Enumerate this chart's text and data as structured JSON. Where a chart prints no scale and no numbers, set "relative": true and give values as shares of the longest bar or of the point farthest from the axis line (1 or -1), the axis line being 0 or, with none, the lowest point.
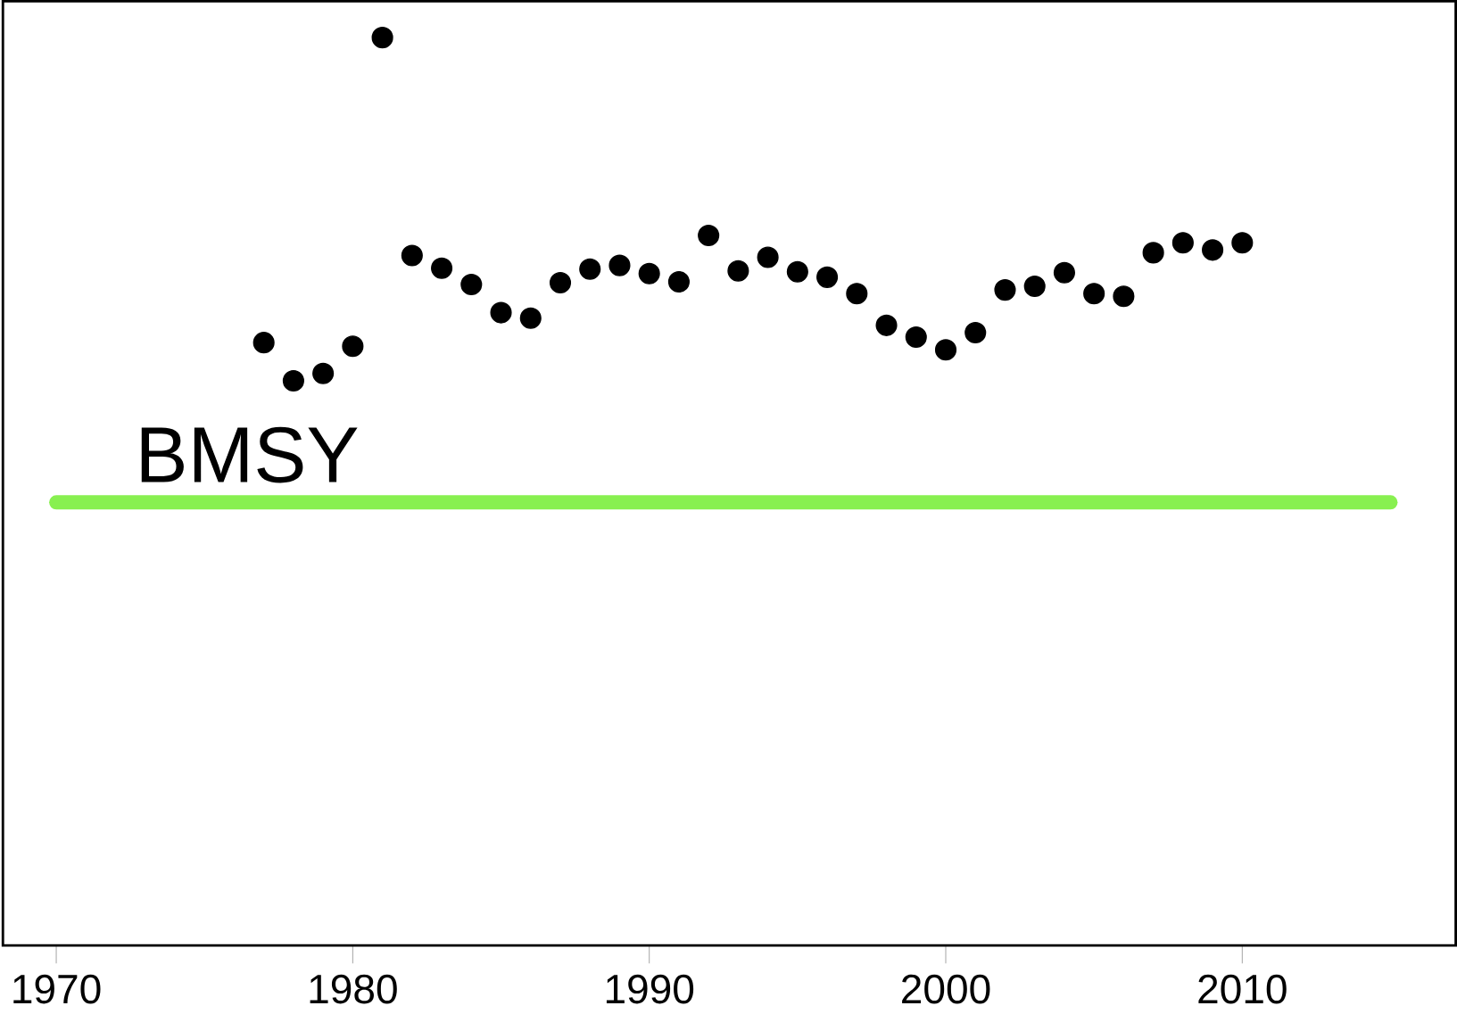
{
  "chart_data": {
    "type": "scatter",
    "relative": true,
    "xlim": [
      1968.2,
      2017.2
    ],
    "xticks": [
      1970,
      1980,
      1990,
      2000,
      2010
    ],
    "series": [
      {
        "marker": "circle",
        "color": "#000000",
        "x": [
          1977,
          1978,
          1979,
          1980,
          1981,
          1982,
          1983,
          1984,
          1985,
          1986,
          1987,
          1988,
          1989,
          1990,
          1991,
          1992,
          1993,
          1994,
          1995,
          1996,
          1997,
          1998,
          1999,
          2000,
          2001,
          2002,
          2003,
          2004,
          2005,
          2006,
          2007,
          2008,
          2009,
          2010
        ],
        "values": [
          0.664,
          0.622,
          0.63,
          0.66,
          1.0,
          0.76,
          0.746,
          0.728,
          0.697,
          0.691,
          0.73,
          0.745,
          0.749,
          0.74,
          0.731,
          0.782,
          0.743,
          0.758,
          0.742,
          0.736,
          0.718,
          0.683,
          0.67,
          0.656,
          0.675,
          0.722,
          0.726,
          0.741,
          0.718,
          0.715,
          0.763,
          0.774,
          0.766,
          0.774
        ]
      },
      {
        "type": "line",
        "marker": "none",
        "name": "BMSY",
        "color": "#88f050",
        "x": [
          1970,
          2015
        ],
        "values": [
          0.488,
          0.488
        ]
      }
    ]
  }
}
